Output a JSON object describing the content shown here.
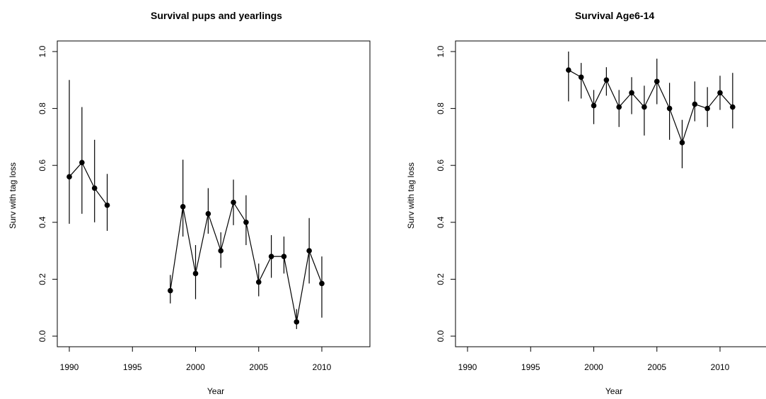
{
  "chart_data": [
    {
      "type": "scatter",
      "title": "Survival pups and yearlings",
      "xlabel": "Year",
      "ylabel": "Surv with tag loss",
      "xlim": [
        1989,
        2014
      ],
      "ylim": [
        0,
        1
      ],
      "xticks": [
        "1990",
        "1995",
        "2000",
        "2005",
        "2010"
      ],
      "yticks": [
        "0.0",
        "0.2",
        "0.4",
        "0.6",
        "0.8",
        "1.0"
      ],
      "grid": false,
      "series": [
        {
          "x": [
            1990,
            1991,
            1992,
            1993,
            1998,
            1999,
            2000,
            2001,
            2002,
            2003,
            2004,
            2005,
            2006,
            2007,
            2008,
            2009,
            2010
          ],
          "y": [
            0.56,
            0.61,
            0.52,
            0.46,
            0.16,
            0.455,
            0.22,
            0.43,
            0.3,
            0.47,
            0.4,
            0.19,
            0.28,
            0.28,
            0.05,
            0.3,
            0.185
          ],
          "lower": [
            0.395,
            0.43,
            0.4,
            0.37,
            0.115,
            0.35,
            0.13,
            0.36,
            0.24,
            0.39,
            0.32,
            0.14,
            0.205,
            0.22,
            0.025,
            0.185,
            0.065
          ],
          "upper": [
            0.9,
            0.805,
            0.69,
            0.57,
            0.215,
            0.62,
            0.32,
            0.52,
            0.365,
            0.55,
            0.495,
            0.255,
            0.355,
            0.35,
            0.095,
            0.415,
            0.28
          ],
          "connected_segments": [
            [
              1990,
              1993
            ],
            [
              1998,
              2010
            ]
          ]
        }
      ]
    },
    {
      "type": "scatter",
      "title": "Survival Age6-14",
      "xlabel": "Year",
      "ylabel": "Surv with tag loss",
      "xlim": [
        1989,
        2014
      ],
      "ylim": [
        0,
        1
      ],
      "xticks": [
        "1990",
        "1995",
        "2000",
        "2005",
        "2010"
      ],
      "yticks": [
        "0.0",
        "0.2",
        "0.4",
        "0.6",
        "0.8",
        "1.0"
      ],
      "grid": false,
      "series": [
        {
          "x": [
            1998,
            1999,
            2000,
            2001,
            2002,
            2003,
            2004,
            2005,
            2006,
            2007,
            2008,
            2009,
            2010,
            2011
          ],
          "y": [
            0.935,
            0.91,
            0.81,
            0.9,
            0.805,
            0.855,
            0.805,
            0.895,
            0.8,
            0.68,
            0.815,
            0.8,
            0.855,
            0.805
          ],
          "lower": [
            0.825,
            0.835,
            0.745,
            0.845,
            0.735,
            0.78,
            0.705,
            0.815,
            0.69,
            0.59,
            0.755,
            0.735,
            0.795,
            0.73
          ],
          "upper": [
            1.0,
            0.96,
            0.865,
            0.945,
            0.865,
            0.91,
            0.88,
            0.975,
            0.89,
            0.76,
            0.895,
            0.875,
            0.915,
            0.925
          ],
          "connected_segments": [
            [
              1998,
              2011
            ]
          ]
        }
      ]
    }
  ]
}
